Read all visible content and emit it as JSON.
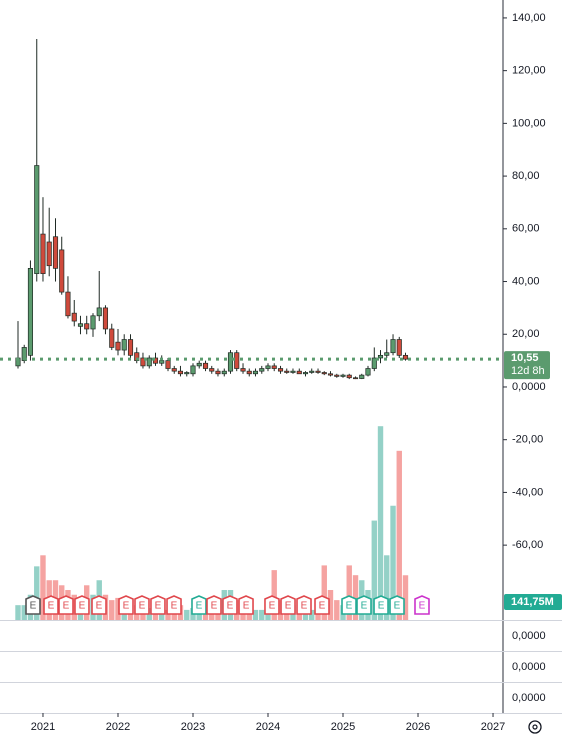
{
  "chart_data": {
    "type": "candlestick",
    "x": [
      2020.667,
      2020.75,
      2020.833,
      2020.917,
      2021.0,
      2021.083,
      2021.167,
      2021.25,
      2021.333,
      2021.417,
      2021.5,
      2021.583,
      2021.667,
      2021.75,
      2021.833,
      2021.917,
      2022.0,
      2022.083,
      2022.167,
      2022.25,
      2022.333,
      2022.417,
      2022.5,
      2022.583,
      2022.667,
      2022.75,
      2022.833,
      2022.917,
      2023.0,
      2023.083,
      2023.167,
      2023.25,
      2023.333,
      2023.417,
      2023.5,
      2023.583,
      2023.667,
      2023.75,
      2023.833,
      2023.917,
      2024.0,
      2024.083,
      2024.167,
      2024.25,
      2024.333,
      2024.417,
      2024.5,
      2024.583,
      2024.667,
      2024.75,
      2024.833,
      2024.917,
      2025.0,
      2025.083,
      2025.167,
      2025.25,
      2025.333,
      2025.417,
      2025.5,
      2025.583,
      2025.667,
      2025.75,
      2025.833
    ],
    "open": [
      8,
      10,
      12,
      43,
      58,
      55,
      57,
      52,
      36,
      28,
      23,
      24,
      22,
      27,
      30,
      22,
      17,
      14,
      18,
      13,
      11,
      8,
      11,
      9,
      10,
      7,
      6,
      5,
      5,
      8,
      9,
      7,
      6,
      5,
      6,
      13,
      7,
      6,
      5,
      6,
      7,
      8,
      7,
      6,
      5.5,
      6,
      5,
      5.5,
      6,
      5.5,
      5,
      4.5,
      4,
      4.5,
      3.5,
      3.2,
      4.5,
      7,
      11,
      12,
      13,
      18,
      12
    ],
    "high": [
      25,
      16,
      48,
      132,
      72,
      68,
      64,
      57,
      42,
      33,
      27,
      27,
      28,
      44,
      31,
      24,
      22,
      20,
      20,
      15,
      13,
      12,
      13,
      12,
      11,
      8,
      8,
      6,
      9,
      10,
      10,
      8,
      7,
      7,
      14,
      14,
      9,
      7,
      7,
      8,
      9,
      9,
      8,
      7,
      7,
      7,
      6,
      7,
      7,
      6,
      6,
      5,
      5,
      5,
      4,
      5,
      8,
      15,
      14,
      18,
      20,
      19,
      13
    ],
    "low": [
      7,
      9,
      10,
      40,
      40,
      42,
      40,
      35,
      26,
      23,
      20,
      20,
      19,
      25,
      20,
      14,
      12,
      12,
      11,
      9,
      7,
      7,
      8,
      8,
      6,
      5,
      4,
      4,
      4,
      7,
      6,
      5,
      4,
      4,
      5,
      6,
      5,
      4,
      4,
      5,
      6,
      6,
      5,
      5,
      5,
      5,
      4,
      5,
      5,
      4.5,
      4,
      3.5,
      3.5,
      3,
      3,
      3,
      4,
      6,
      9,
      11,
      12,
      11,
      10
    ],
    "close": [
      11,
      15,
      45,
      84,
      43,
      46,
      45,
      36,
      27,
      25,
      24,
      22,
      27,
      30,
      22,
      15,
      14,
      18,
      12,
      10,
      8,
      11,
      9,
      10,
      7,
      6,
      5,
      5.5,
      8,
      9,
      7,
      6,
      5,
      6,
      13,
      7,
      6,
      5,
      6,
      7,
      8,
      7,
      6,
      5.5,
      6,
      5,
      5.5,
      6,
      5.5,
      5,
      4.5,
      4,
      4.5,
      3.5,
      3.2,
      4.5,
      7,
      11,
      12,
      13,
      18,
      12,
      10.55
    ],
    "volume": [
      47,
      47,
      80,
      170,
      205,
      126,
      126,
      110,
      95,
      80,
      63,
      110,
      80,
      126,
      80,
      63,
      70,
      57,
      47,
      47,
      47,
      38,
      32,
      47,
      32,
      38,
      47,
      32,
      38,
      32,
      25,
      32,
      32,
      95,
      95,
      63,
      47,
      32,
      32,
      32,
      38,
      158,
      63,
      47,
      47,
      38,
      32,
      32,
      38,
      173,
      95,
      63,
      47,
      173,
      142,
      126,
      95,
      315,
      614,
      205,
      362,
      536,
      141.75
    ],
    "colors": {
      "up": "#5b9b6e",
      "down": "#cf4a3c",
      "up_volume": "#94d1c7",
      "down_volume": "#f5a3a1"
    },
    "xlim": [
      2020.427,
      2027.133
    ],
    "xticks": [
      2021,
      2022,
      2023,
      2024,
      2025,
      2026,
      2027
    ],
    "ylim": [
      -88.4,
      146.8
    ],
    "yticks": [
      {
        "value": 140,
        "label": "140,00"
      },
      {
        "value": 120,
        "label": "120,00"
      },
      {
        "value": 100,
        "label": "100,00"
      },
      {
        "value": 80,
        "label": "80,00"
      },
      {
        "value": 60,
        "label": "60,00"
      },
      {
        "value": 40,
        "label": "40,00"
      },
      {
        "value": 20,
        "label": "20,00"
      },
      {
        "value": 0,
        "label": "0,0000"
      },
      {
        "value": -20,
        "label": "-20,00"
      },
      {
        "value": -40,
        "label": "-40,00"
      },
      {
        "value": -60,
        "label": "-60,00"
      }
    ],
    "volume_ylim": [
      0,
      640
    ],
    "price_label": {
      "value": 10.55,
      "label": "10,55"
    },
    "countdown": "12d 8h",
    "volume_label": {
      "value": 141.75,
      "label": "141,75M"
    },
    "events": {
      "label": "E",
      "items": [
        {
          "x": 2020.867,
          "color": "#555555"
        },
        {
          "x": 2021.107,
          "color": "#e0474c"
        },
        {
          "x": 2021.307,
          "color": "#e0474c"
        },
        {
          "x": 2021.52,
          "color": "#e0474c"
        },
        {
          "x": 2021.747,
          "color": "#e0474c"
        },
        {
          "x": 2022.107,
          "color": "#e0474c"
        },
        {
          "x": 2022.32,
          "color": "#e0474c"
        },
        {
          "x": 2022.533,
          "color": "#e0474c"
        },
        {
          "x": 2022.747,
          "color": "#e0474c"
        },
        {
          "x": 2023.08,
          "color": "#22ab94"
        },
        {
          "x": 2023.28,
          "color": "#e0474c"
        },
        {
          "x": 2023.493,
          "color": "#e0474c"
        },
        {
          "x": 2023.707,
          "color": "#e0474c"
        },
        {
          "x": 2024.053,
          "color": "#e0474c"
        },
        {
          "x": 2024.267,
          "color": "#e0474c"
        },
        {
          "x": 2024.48,
          "color": "#e0474c"
        },
        {
          "x": 2024.72,
          "color": "#e0474c"
        },
        {
          "x": 2025.08,
          "color": "#22ab94"
        },
        {
          "x": 2025.28,
          "color": "#22ab94"
        },
        {
          "x": 2025.507,
          "color": "#22ab94"
        },
        {
          "x": 2025.72,
          "color": "#22ab94"
        },
        {
          "x": 2026.053,
          "color": "#cc33cc"
        }
      ]
    },
    "pane_labels": [
      "0,0000",
      "0,0000",
      "0,0000"
    ]
  }
}
